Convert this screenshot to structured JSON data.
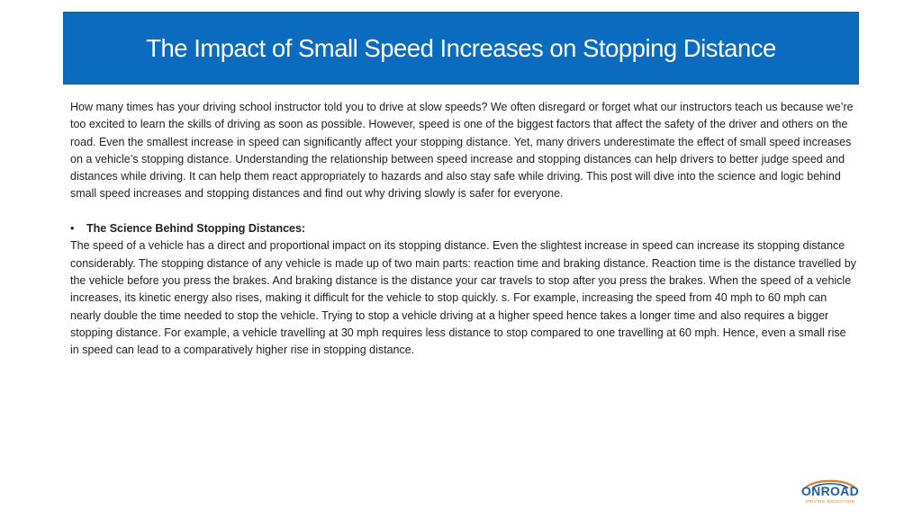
{
  "title": "The Impact of Small Speed Increases on Stopping Distance",
  "intro": "How many times has your driving school instructor told you to drive at slow speeds? We often disregard or forget what our instructors teach us because we’re too excited to learn the skills of driving as soon as possible. However, speed is one of the biggest factors that affect the safety of the driver and others on the road. Even the smallest increase in speed can significantly affect your stopping distance. Yet, many drivers underestimate the effect of small speed increases on a vehicle’s stopping distance. Understanding the relationship between speed increase and stopping distances can help drivers to better judge speed and distances while driving. It can help them react appropriately to hazards and also stay safe while driving. This post will dive into the science and logic behind small speed increases and stopping distances and find out why driving slowly is safer for everyone.",
  "bullet": {
    "symbol": "•",
    "heading": "The Science Behind Stopping Distances:"
  },
  "body": "The speed of a vehicle has a direct and proportional impact on its stopping distance. Even the slightest increase in speed can increase its stopping distance considerably. The stopping distance of any vehicle is made up of two main parts: reaction time and braking distance. Reaction time is the distance travelled by the vehicle before you press the brakes. And braking distance is the distance your car travels to stop after you press the brakes. When the speed of a vehicle increases, its kinetic energy also rises, making it difficult for the vehicle to stop quickly. s. For example, increasing the speed from 40 mph to 60 mph can nearly double the time needed to stop the vehicle. Trying to stop a vehicle driving at a higher speed hence takes a longer time and also requires a bigger stopping distance. For example, a vehicle travelling at 30 mph requires less distance to stop compared to one travelling at 60 mph. Hence, even a small rise in speed can lead to a comparatively higher rise in stopping distance.",
  "logo": {
    "name": "ONROAD",
    "tagline": "DRIVING EDUCATION",
    "colors": {
      "primary": "#1a5fa8",
      "accent": "#e07a2b"
    }
  },
  "colors": {
    "title_bar": "#0b6cbf",
    "title_text": "#ffffff",
    "body_text": "#222222"
  }
}
